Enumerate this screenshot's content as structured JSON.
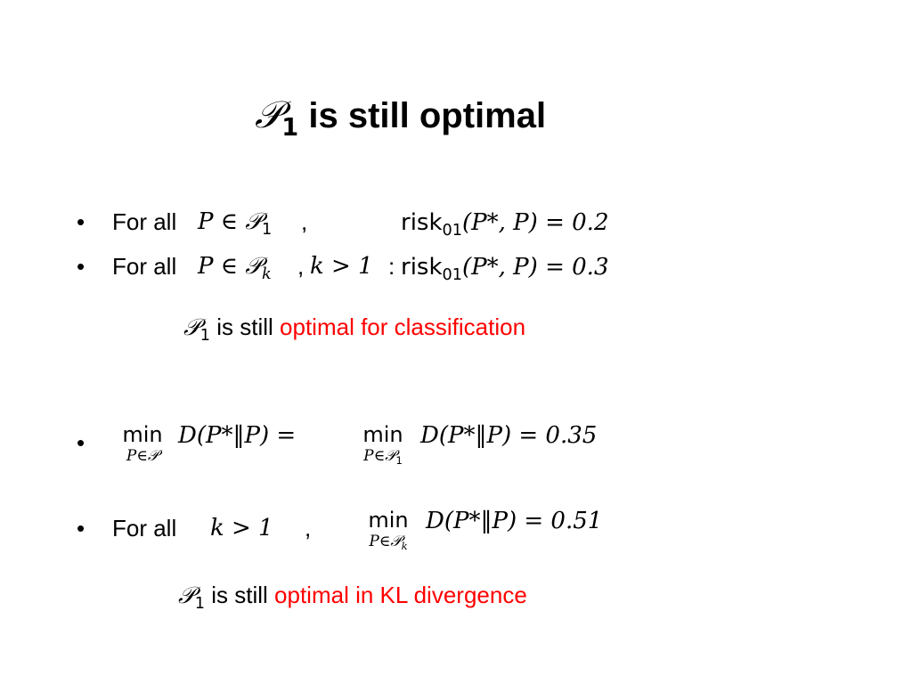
{
  "title": {
    "symbol": "𝒫",
    "symbol_sub": "1",
    "text": "is still optimal"
  },
  "bullets": [
    {
      "bullet": "•",
      "label": "For all",
      "cond": "P ∈ 𝒫",
      "cond_sub": "1",
      "sep": ",",
      "risk_text": "risk",
      "risk_sub": "01",
      "risk_expr": "(P*, P) = 0.2"
    },
    {
      "bullet": "•",
      "label": "For all",
      "cond": "P ∈ 𝒫",
      "cond_sub": "k",
      "sep": ",",
      "cond2": "k > 1",
      "colon": ":",
      "risk_text": "risk",
      "risk_sub": "01",
      "risk_expr": "(P*, P) = 0.3"
    }
  ],
  "conclusion1": {
    "symbol": "𝒫",
    "symbol_sub": "1",
    "text": "is still",
    "highlight": "optimal for classification"
  },
  "bullet3": {
    "bullet": "•",
    "min1": "min",
    "min1_under": "P∈𝒫",
    "expr1": "D(P*‖P) =",
    "min2": "min",
    "min2_under": "P∈𝒫",
    "min2_under_sub": "1",
    "expr2": "D(P*‖P) = 0.35"
  },
  "bullet4": {
    "bullet": "•",
    "label": "For all",
    "cond": "k > 1",
    "sep": ",",
    "min": "min",
    "min_under": "P∈𝒫",
    "min_under_sub": "k",
    "expr": "D(P*‖P) = 0.51"
  },
  "conclusion2": {
    "symbol": "𝒫",
    "symbol_sub": "1",
    "text": "is still",
    "highlight": "optimal in KL divergence"
  },
  "colors": {
    "highlight": "#ff0000",
    "text": "#000000",
    "background": "#ffffff"
  }
}
